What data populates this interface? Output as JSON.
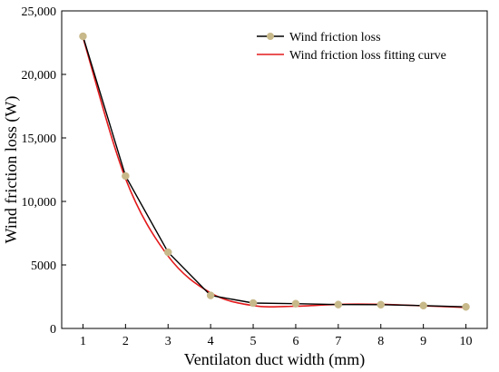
{
  "chart_data": {
    "type": "line",
    "xlabel": "Ventilaton duct width (mm)",
    "ylabel": "Wind friction loss (W)",
    "xlim": [
      0.5,
      10.5
    ],
    "ylim": [
      0,
      25000
    ],
    "xticks": [
      1,
      2,
      3,
      4,
      5,
      6,
      7,
      8,
      9,
      10
    ],
    "xtick_labels": [
      "1",
      "2",
      "3",
      "4",
      "5",
      "6",
      "7",
      "8",
      "9",
      "10"
    ],
    "yticks": [
      0,
      5000,
      10000,
      15000,
      20000,
      25000
    ],
    "ytick_labels": [
      "0",
      "5000",
      "10,000",
      "15,000",
      "20,000",
      "25,000"
    ],
    "grid": false,
    "legend_position": "top-right",
    "x": [
      1,
      2,
      3,
      4,
      5,
      6,
      7,
      8,
      9,
      10
    ],
    "series": [
      {
        "name": "Wind friction loss",
        "values": [
          23000,
          12000,
          6000,
          2600,
          2000,
          1950,
          1880,
          1870,
          1800,
          1700
        ],
        "color": "#000000",
        "marker_color": "#c8b98a",
        "style": "line-with-markers"
      },
      {
        "name": "Wind friction loss fitting curve",
        "values": [
          22900,
          11800,
          5700,
          2800,
          1800,
          1750,
          1900,
          1900,
          1780,
          1650
        ],
        "color": "#e31a1c",
        "style": "smooth-line"
      }
    ]
  }
}
